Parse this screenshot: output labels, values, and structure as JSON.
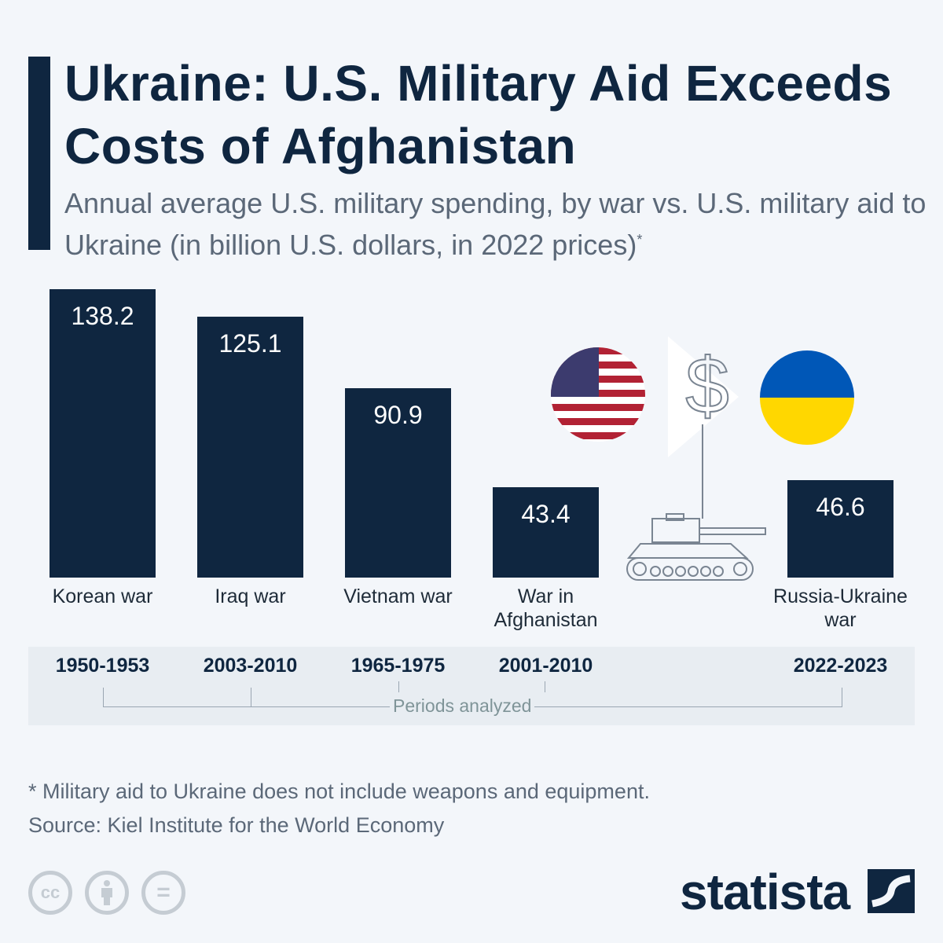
{
  "header": {
    "title": "Ukraine: U.S. Military Aid Exceeds Costs of Afghanistan",
    "subtitle": "Annual average U.S. military spending, by war vs. U.S. military aid to Ukraine (in billion U.S. dollars, in 2022 prices)",
    "subtitle_mark": "*"
  },
  "chart_data": {
    "type": "bar",
    "title": "Ukraine: U.S. Military Aid Exceeds Costs of Afghanistan",
    "categories": [
      "Korean war",
      "Iraq war",
      "Vietnam war",
      "War in Afghanistan",
      "Russia-Ukraine war"
    ],
    "values": [
      138.2,
      125.1,
      90.9,
      43.4,
      46.6
    ],
    "value_labels": [
      "138.2",
      "125.1",
      "90.9",
      "43.4",
      "46.6"
    ],
    "periods": [
      "1950-1953",
      "2003-2010",
      "1965-1975",
      "2001-2010",
      "2022-2023"
    ],
    "periods_label": "Periods analyzed",
    "ylim": [
      0,
      140
    ],
    "grid": false,
    "bar_color": "#0f2640"
  },
  "illustration": {
    "icons": [
      "us-flag",
      "dollar-sign",
      "tank",
      "ukraine-flag"
    ],
    "colors": {
      "us_red": "#b22234",
      "us_blue": "#3c3b6e",
      "ua_blue": "#0057b7",
      "ua_yellow": "#ffd700"
    }
  },
  "footer": {
    "note": "* Military aid to Ukraine does not include weapons and equipment.",
    "source": "Source: Kiel Institute for the World Economy",
    "license_icons": [
      "cc-icon",
      "attribution-icon",
      "no-derivatives-icon"
    ],
    "cc_text": "cc",
    "nd_text": "=",
    "logo": "statista"
  }
}
